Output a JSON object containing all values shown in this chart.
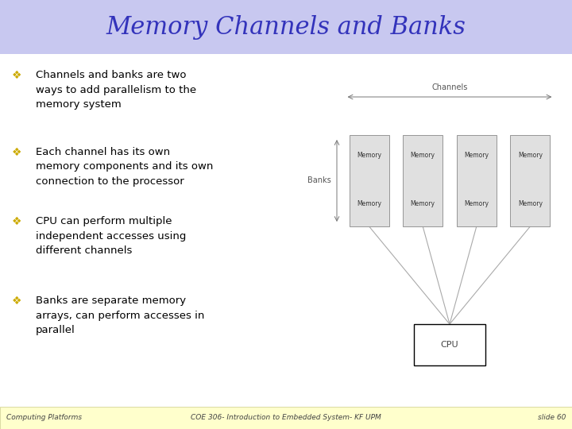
{
  "title": "Memory Channels and Banks",
  "title_color": "#3333bb",
  "title_bg": "#c8c8f0",
  "background_color": "#ffffff",
  "footer_bg": "#ffffcc",
  "footer_left": "Computing Platforms",
  "footer_center": "COE 306- Introduction to Embedded System- KF UPM",
  "footer_right": "slide 60",
  "bullet_color": "#ccaa00",
  "text_color": "#000000",
  "bullets": [
    "Channels and banks are two\nways to add parallelism to the\nmemory system",
    "Each channel has its own\nmemory components and its own\nconnection to the processor",
    "CPU can perform multiple\nindependent accesses using\ndifferent channels",
    "Banks are separate memory\narrays, can perform accesses in\nparallel"
  ],
  "diagram": {
    "channels_label": "Channels",
    "banks_label": "Banks",
    "memory_label": "Memory",
    "cpu_label": "CPU",
    "box_fill": "#e0e0e0",
    "box_edge": "#888888",
    "cpu_fill": "#ffffff",
    "cpu_edge": "#000000",
    "line_color": "#aaaaaa"
  }
}
